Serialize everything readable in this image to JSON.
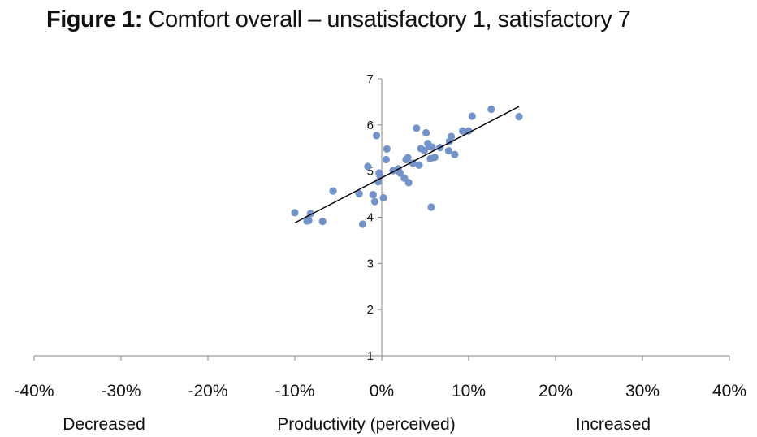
{
  "title_prefix": "Figure 1:",
  "title_rest": " Comfort overall – unsatisfactory 1, satisfactory 7",
  "chart_data": {
    "type": "scatter",
    "title": "Figure 1: Comfort overall – unsatisfactory 1, satisfactory 7",
    "xlabel": "Productivity (perceived)",
    "ylabel": "",
    "xlim": [
      -0.4,
      0.4
    ],
    "ylim": [
      1,
      7
    ],
    "x_tick_labels": [
      "-40%",
      "-30%",
      "-20%",
      "-10%",
      "0%",
      "10%",
      "20%",
      "30%",
      "40%"
    ],
    "y_tick_labels": [
      "1",
      "2",
      "3",
      "4",
      "5",
      "6",
      "7"
    ],
    "left_annotation": "Decreased",
    "right_annotation": "Increased",
    "point_color": "#7393c9",
    "trendline_color": "#000000",
    "trendline": {
      "x": [
        -0.1,
        0.158
      ],
      "y": [
        3.88,
        6.4
      ]
    },
    "points": [
      {
        "x": -0.1,
        "y": 4.1
      },
      {
        "x": -0.086,
        "y": 3.92
      },
      {
        "x": -0.084,
        "y": 3.93
      },
      {
        "x": -0.082,
        "y": 4.08
      },
      {
        "x": -0.068,
        "y": 3.91
      },
      {
        "x": -0.056,
        "y": 4.57
      },
      {
        "x": -0.026,
        "y": 4.51
      },
      {
        "x": -0.022,
        "y": 3.85
      },
      {
        "x": -0.016,
        "y": 5.1
      },
      {
        "x": -0.01,
        "y": 4.49
      },
      {
        "x": -0.008,
        "y": 4.34
      },
      {
        "x": -0.006,
        "y": 5.77
      },
      {
        "x": -0.004,
        "y": 4.77
      },
      {
        "x": -0.003,
        "y": 4.96
      },
      {
        "x": -0.002,
        "y": 4.9
      },
      {
        "x": 0.002,
        "y": 4.42
      },
      {
        "x": 0.005,
        "y": 5.25
      },
      {
        "x": 0.006,
        "y": 5.48
      },
      {
        "x": 0.013,
        "y": 5.01
      },
      {
        "x": 0.019,
        "y": 5.05
      },
      {
        "x": 0.021,
        "y": 4.96
      },
      {
        "x": 0.026,
        "y": 4.85
      },
      {
        "x": 0.028,
        "y": 5.25
      },
      {
        "x": 0.03,
        "y": 5.29
      },
      {
        "x": 0.031,
        "y": 4.75
      },
      {
        "x": 0.036,
        "y": 5.17
      },
      {
        "x": 0.04,
        "y": 5.93
      },
      {
        "x": 0.043,
        "y": 5.13
      },
      {
        "x": 0.045,
        "y": 5.49
      },
      {
        "x": 0.049,
        "y": 5.45
      },
      {
        "x": 0.051,
        "y": 5.83
      },
      {
        "x": 0.053,
        "y": 5.6
      },
      {
        "x": 0.055,
        "y": 5.53
      },
      {
        "x": 0.056,
        "y": 5.27
      },
      {
        "x": 0.057,
        "y": 4.22
      },
      {
        "x": 0.058,
        "y": 5.52
      },
      {
        "x": 0.061,
        "y": 5.3
      },
      {
        "x": 0.067,
        "y": 5.51
      },
      {
        "x": 0.077,
        "y": 5.44
      },
      {
        "x": 0.078,
        "y": 5.65
      },
      {
        "x": 0.08,
        "y": 5.75
      },
      {
        "x": 0.084,
        "y": 5.36
      },
      {
        "x": 0.093,
        "y": 5.87
      },
      {
        "x": 0.1,
        "y": 5.87
      },
      {
        "x": 0.104,
        "y": 6.19
      },
      {
        "x": 0.126,
        "y": 6.34
      },
      {
        "x": 0.158,
        "y": 6.18
      }
    ]
  }
}
